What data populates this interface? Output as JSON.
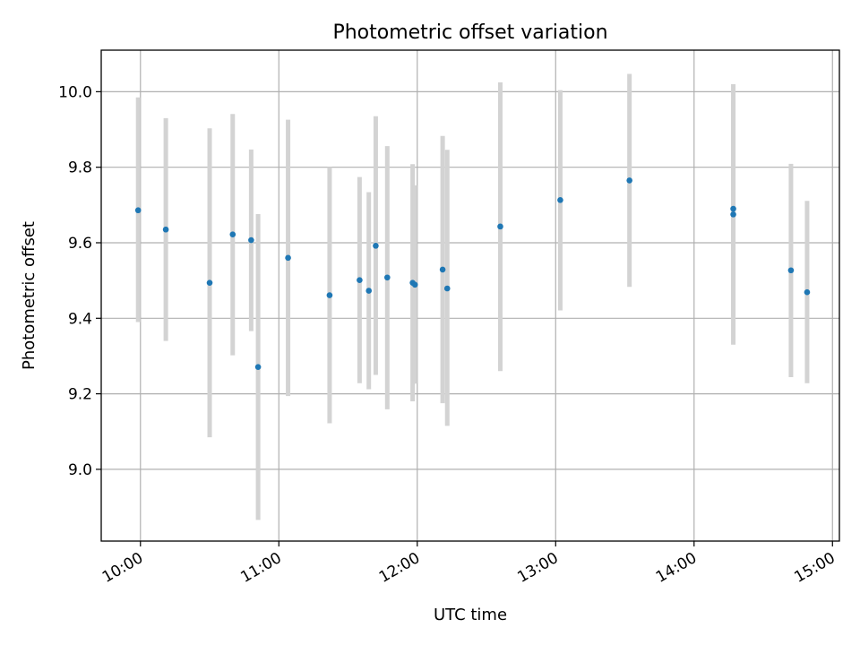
{
  "colors": {
    "point": "#1f77b4",
    "errorbar": "#d3d3d3",
    "grid": "#b0b0b0"
  },
  "chart_data": {
    "type": "scatter",
    "title": "Photometric offset variation",
    "xlabel": "UTC time",
    "ylabel": "Photometric offset",
    "grid": true,
    "xlim": [
      "09:43",
      "15:03"
    ],
    "ylim": [
      8.81,
      10.11
    ],
    "xticks": [
      "10:00",
      "11:00",
      "12:00",
      "13:00",
      "14:00",
      "15:00"
    ],
    "yticks": [
      9.0,
      9.2,
      9.4,
      9.6,
      9.8,
      10.0
    ],
    "points": [
      {
        "x": "09:59",
        "y": 9.686,
        "ylow": 9.39,
        "yhigh": 9.985
      },
      {
        "x": "10:11",
        "y": 9.635,
        "ylow": 9.34,
        "yhigh": 9.93
      },
      {
        "x": "10:30",
        "y": 9.494,
        "ylow": 9.085,
        "yhigh": 9.903
      },
      {
        "x": "10:40",
        "y": 9.622,
        "ylow": 9.302,
        "yhigh": 9.941
      },
      {
        "x": "10:48",
        "y": 9.607,
        "ylow": 9.366,
        "yhigh": 9.847
      },
      {
        "x": "10:51",
        "y": 9.271,
        "ylow": 8.866,
        "yhigh": 9.676
      },
      {
        "x": "11:04",
        "y": 9.56,
        "ylow": 9.194,
        "yhigh": 9.926
      },
      {
        "x": "11:22",
        "y": 9.461,
        "ylow": 9.122,
        "yhigh": 9.8
      },
      {
        "x": "11:35",
        "y": 9.501,
        "ylow": 9.228,
        "yhigh": 9.774
      },
      {
        "x": "11:39",
        "y": 9.473,
        "ylow": 9.212,
        "yhigh": 9.734
      },
      {
        "x": "11:42",
        "y": 9.592,
        "ylow": 9.25,
        "yhigh": 9.935
      },
      {
        "x": "11:47",
        "y": 9.508,
        "ylow": 9.159,
        "yhigh": 9.856
      },
      {
        "x": "11:58",
        "y": 9.494,
        "ylow": 9.18,
        "yhigh": 9.808
      },
      {
        "x": "11:59",
        "y": 9.489,
        "ylow": 9.227,
        "yhigh": 9.752
      },
      {
        "x": "12:11",
        "y": 9.529,
        "ylow": 9.175,
        "yhigh": 9.883
      },
      {
        "x": "12:13",
        "y": 9.479,
        "ylow": 9.115,
        "yhigh": 9.846
      },
      {
        "x": "12:36",
        "y": 9.643,
        "ylow": 9.26,
        "yhigh": 10.025
      },
      {
        "x": "13:02",
        "y": 9.713,
        "ylow": 9.421,
        "yhigh": 10.004
      },
      {
        "x": "13:32",
        "y": 9.765,
        "ylow": 9.483,
        "yhigh": 10.047
      },
      {
        "x": "14:17",
        "y": 9.69,
        "ylow": 9.405,
        "yhigh": 9.976
      },
      {
        "x": "14:17",
        "y": 9.675,
        "ylow": 9.33,
        "yhigh": 10.02
      },
      {
        "x": "14:42",
        "y": 9.527,
        "ylow": 9.244,
        "yhigh": 9.809
      },
      {
        "x": "14:49",
        "y": 9.469,
        "ylow": 9.228,
        "yhigh": 9.711
      }
    ]
  }
}
